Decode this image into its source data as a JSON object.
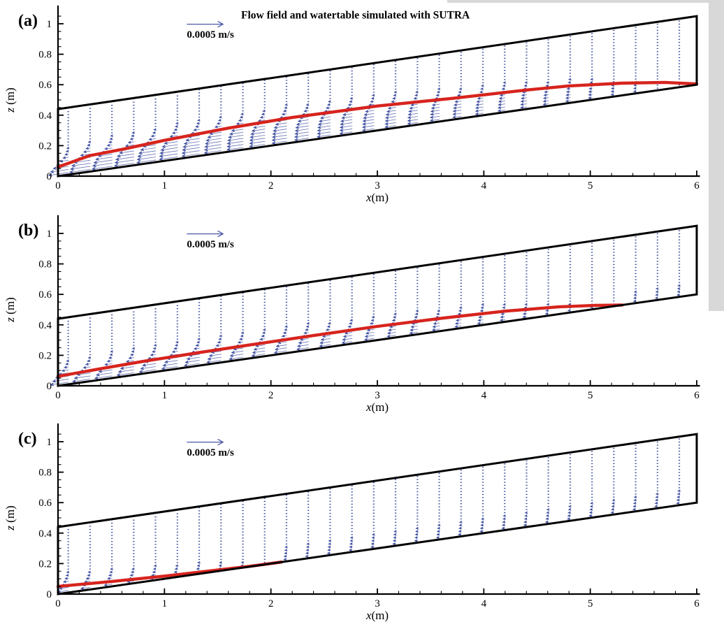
{
  "figure": {
    "xlabel": {
      "variable": "x",
      "unit": "(m)"
    },
    "ylabel": {
      "variable": "z",
      "unit": " (m)"
    },
    "xticks": {
      "values": [
        0,
        1,
        2,
        3,
        4,
        5,
        6
      ],
      "labels": [
        "0",
        "1",
        "2",
        "3",
        "4",
        "5",
        "6"
      ],
      "minor_step": 0.2
    },
    "yticks": {
      "values": [
        0,
        0.2,
        0.4,
        0.6,
        0.8,
        1
      ],
      "labels": [
        "0",
        "0.2",
        "0.4",
        "0.6",
        "0.8",
        "1"
      ],
      "minor_step": 0.05
    },
    "colors": {
      "vector_shaft": "#4a58a6",
      "vector_head": "#36479b",
      "watertable": "#d7241e",
      "outline": "#000000",
      "axis": "#000000",
      "page_margin": "#d8d8d8",
      "background": "#ffffff"
    },
    "panels": [
      {
        "label": "(a)",
        "title": "Flow field and watertable simulated with SUTRA",
        "scale_label": "0.0005 m/s"
      },
      {
        "label": "(b)",
        "title": "",
        "scale_label": "0.0005 m/s"
      },
      {
        "label": "(c)",
        "title": "",
        "scale_label": "0.0005 m/s"
      }
    ]
  },
  "chart_data": [
    {
      "type": "quiver",
      "panel": "a",
      "title": "Flow field and watertable simulated with SUTRA",
      "xlabel": "x(m)",
      "ylabel": "z (m)",
      "xlim": [
        0,
        6
      ],
      "ylim": [
        0,
        1
      ],
      "grid": false,
      "domain_outline": {
        "bed": [
          [
            0,
            0
          ],
          [
            6,
            0.6
          ]
        ],
        "top": [
          [
            0,
            0.44
          ],
          [
            6,
            1.05
          ]
        ],
        "right": [
          [
            6,
            0.6
          ],
          [
            6,
            1.05
          ]
        ]
      },
      "scale_arrow": {
        "label": "0.0005 m/s",
        "x": 1.21,
        "z": 0.997,
        "length_m": 0.34
      },
      "watertable": [
        [
          0,
          0.06
        ],
        [
          0.3,
          0.135
        ],
        [
          0.6,
          0.175
        ],
        [
          1,
          0.235
        ],
        [
          1.6,
          0.315
        ],
        [
          2.2,
          0.385
        ],
        [
          3,
          0.46
        ],
        [
          3.7,
          0.51
        ],
        [
          4.4,
          0.565
        ],
        [
          4.8,
          0.592
        ],
        [
          5.3,
          0.61
        ],
        [
          5.7,
          0.615
        ],
        [
          6,
          0.605
        ]
      ],
      "vectors": {
        "x0": 0.1,
        "dx": 0.205,
        "n": 29,
        "dz": 0.02,
        "L0": 0.21,
        "L_zero_x": 6.0,
        "L_min": 0.013,
        "wt_end_x": 6.0,
        "dry_foot_len": 0.0,
        "fringe": 0.03,
        "dry_fringe": 0.05,
        "direction": "downslope-left",
        "bed_slope": 0.1
      }
    },
    {
      "type": "quiver",
      "panel": "b",
      "title": "",
      "xlabel": "x(m)",
      "ylabel": "z (m)",
      "xlim": [
        0,
        6
      ],
      "ylim": [
        0,
        1
      ],
      "grid": false,
      "domain_outline": {
        "bed": [
          [
            0,
            0
          ],
          [
            6,
            0.6
          ]
        ],
        "top": [
          [
            0,
            0.44
          ],
          [
            6,
            1.05
          ]
        ],
        "right": [
          [
            6,
            0.6
          ],
          [
            6,
            1.05
          ]
        ]
      },
      "scale_arrow": {
        "label": "0.0005 m/s",
        "x": 1.21,
        "z": 0.997,
        "length_m": 0.34
      },
      "watertable": [
        [
          0,
          0.062
        ],
        [
          0.4,
          0.112
        ],
        [
          0.8,
          0.16
        ],
        [
          1.3,
          0.215
        ],
        [
          1.8,
          0.268
        ],
        [
          2.4,
          0.33
        ],
        [
          3,
          0.39
        ],
        [
          3.6,
          0.443
        ],
        [
          4.2,
          0.49
        ],
        [
          4.7,
          0.518
        ],
        [
          5.05,
          0.528
        ],
        [
          5.3,
          0.53
        ]
      ],
      "vectors": {
        "x0": 0.1,
        "dx": 0.205,
        "n": 29,
        "dz": 0.02,
        "L0": 0.2,
        "L_zero_x": 5.5,
        "L_min": 0.01,
        "wt_end_x": 5.3,
        "dry_foot_len": 0.022,
        "fringe": 0.03,
        "dry_fringe": 0.05,
        "direction": "downslope-left",
        "bed_slope": 0.1
      }
    },
    {
      "type": "quiver",
      "panel": "c",
      "title": "",
      "xlabel": "x(m)",
      "ylabel": "z (m)",
      "xlim": [
        0,
        6
      ],
      "ylim": [
        0,
        1
      ],
      "grid": false,
      "domain_outline": {
        "bed": [
          [
            0,
            0
          ],
          [
            6,
            0.6
          ]
        ],
        "top": [
          [
            0,
            0.44
          ],
          [
            6,
            1.05
          ]
        ],
        "right": [
          [
            6,
            0.6
          ],
          [
            6,
            1.05
          ]
        ]
      },
      "scale_arrow": {
        "label": "0.0005 m/s",
        "x": 1.21,
        "z": 0.997,
        "length_m": 0.34
      },
      "watertable": [
        [
          0,
          0.05
        ],
        [
          0.5,
          0.082
        ],
        [
          1,
          0.118
        ],
        [
          1.5,
          0.158
        ],
        [
          1.8,
          0.182
        ],
        [
          2.1,
          0.21
        ]
      ],
      "vectors": {
        "x0": 0.1,
        "dx": 0.205,
        "n": 29,
        "dz": 0.02,
        "L0": 0.14,
        "L_zero_x": 2.25,
        "L_min": 0.01,
        "wt_end_x": 2.1,
        "dry_foot_len": 0.03,
        "fringe": 0.032,
        "dry_fringe": 0.05,
        "direction": "downslope-left",
        "bed_slope": 0.1
      }
    }
  ]
}
